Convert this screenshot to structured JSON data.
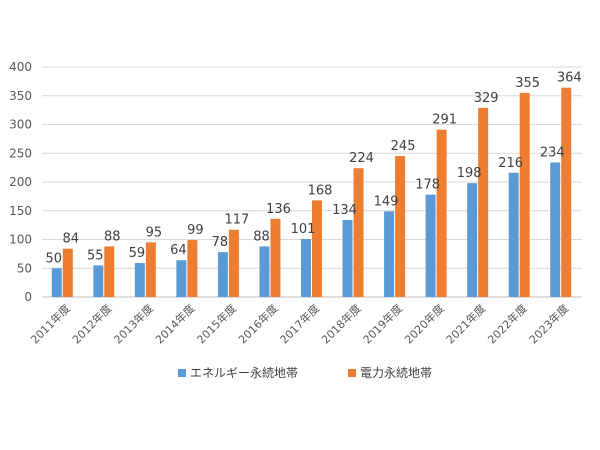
{
  "chart_data": {
    "type": "bar",
    "categories": [
      "2011年度",
      "2012年度",
      "2013年度",
      "2014年度",
      "2015年度",
      "2016年度",
      "2017年度",
      "2018年度",
      "2019年度",
      "2020年度",
      "2021年度",
      "2022年度",
      "2023年度"
    ],
    "series": [
      {
        "name": "エネルギー永続地帯",
        "color": "#5b9bd5",
        "values": [
          50,
          55,
          59,
          64,
          78,
          88,
          101,
          134,
          149,
          178,
          198,
          216,
          234
        ]
      },
      {
        "name": "電力永続地帯",
        "color": "#ed7d31",
        "values": [
          84,
          88,
          95,
          99,
          117,
          136,
          168,
          224,
          245,
          291,
          329,
          355,
          364
        ]
      }
    ],
    "ylim": [
      0,
      400
    ],
    "yticks": [
      0,
      50,
      100,
      150,
      200,
      250,
      300,
      350,
      400
    ],
    "grid": true,
    "legend_position": "bottom",
    "title": "",
    "xlabel": "",
    "ylabel": ""
  }
}
